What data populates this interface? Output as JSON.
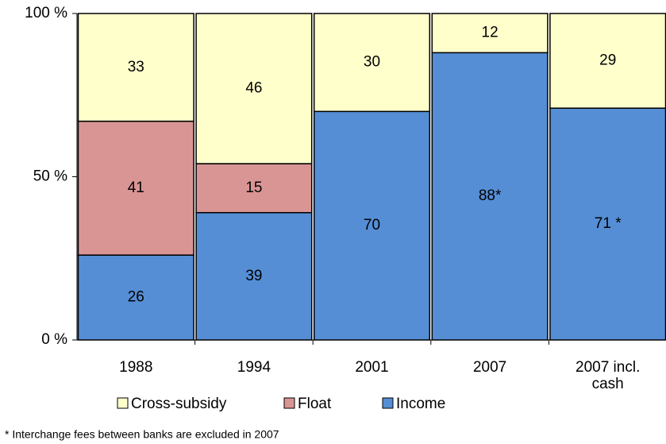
{
  "chart_data": {
    "type": "bar",
    "stacked": true,
    "categories": [
      "1988",
      "1994",
      "2001",
      "2007",
      "2007 incl. cash"
    ],
    "series": [
      {
        "name": "Cross-subsidy",
        "color": "#ffffcc",
        "values": [
          33,
          46,
          30,
          12,
          29
        ]
      },
      {
        "name": "Float",
        "color": "#d99594",
        "values": [
          41,
          15,
          null,
          null,
          null
        ]
      },
      {
        "name": "Income",
        "color": "#558ed5",
        "values": [
          26,
          39,
          70,
          88,
          71
        ],
        "value_labels": [
          "26",
          "39",
          "70",
          "88*",
          "71 *"
        ]
      }
    ],
    "ylim": [
      0,
      100
    ],
    "yticks": [
      {
        "value": 0,
        "label": "0 %"
      },
      {
        "value": 50,
        "label": "50 %"
      },
      {
        "value": 100,
        "label": "100 %"
      }
    ],
    "legend": "bottom",
    "footnote": "* Interchange fees between banks are excluded in 2007"
  }
}
